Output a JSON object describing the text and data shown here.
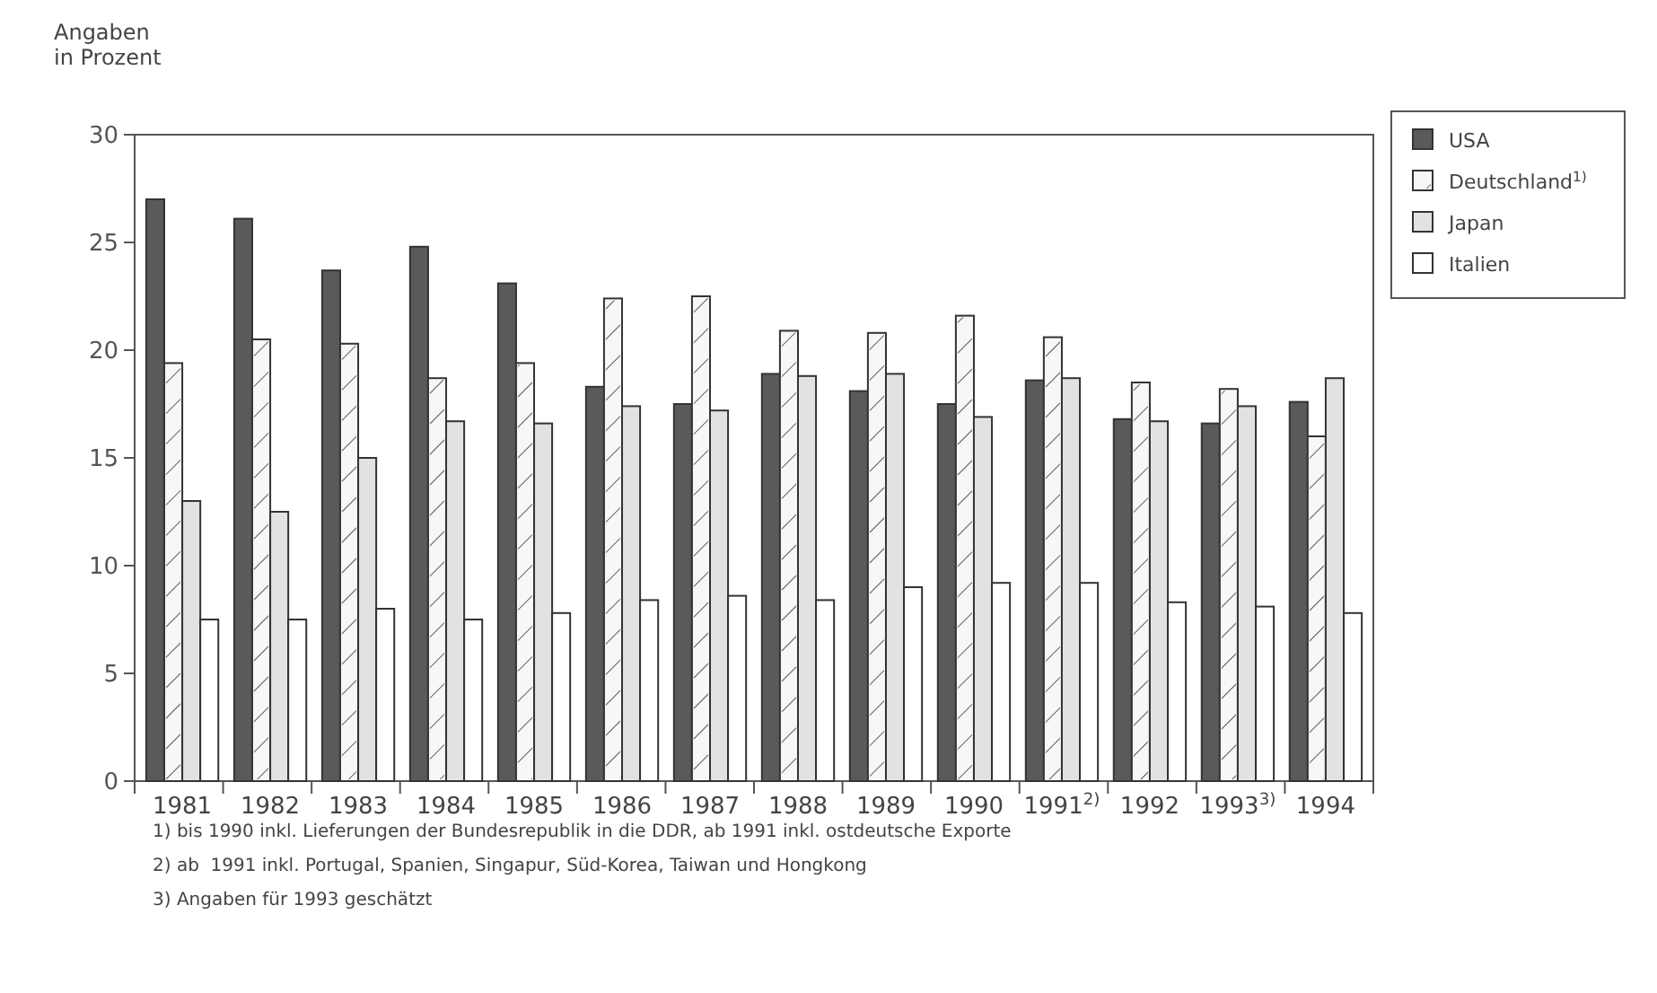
{
  "chart_data": {
    "type": "bar",
    "ylabel": "Angaben in Prozent",
    "categories": [
      "1981",
      "1982",
      "1983",
      "1984",
      "1985",
      "1986",
      "1987",
      "1988",
      "1989",
      "1990",
      "1991$^{2)}$",
      "1992",
      "1993$^{3)}$",
      "1994"
    ],
    "series": [
      {
        "name": "USA",
        "color": "#5a5a5a",
        "values": [
          27,
          26.1,
          23.7,
          24.8,
          23.1,
          18.3,
          17.5,
          18.9,
          18.1,
          17.5,
          18.6,
          16.8,
          16.6,
          17.6
        ]
      },
      {
        "name": "Deutschland$^{1)}$",
        "color": "#f7f7f7",
        "values": [
          19.4,
          20.5,
          20.3,
          18.7,
          19.4,
          22.4,
          22.5,
          20.9,
          20.8,
          21.6,
          20.6,
          18.5,
          18.2,
          16
        ]
      },
      {
        "name": "Japan",
        "color": "#e2e2e2",
        "values": [
          13,
          12.5,
          15,
          16.7,
          16.6,
          17.4,
          17.2,
          18.8,
          18.9,
          16.9,
          18.7,
          16.7,
          17.4,
          18.7
        ]
      },
      {
        "name": "Italien",
        "color": "#ffffff",
        "values": [
          7.5,
          7.5,
          8,
          7.5,
          7.8,
          8.4,
          8.6,
          8.4,
          9,
          9.2,
          9.2,
          8.3,
          8.1,
          7.8
        ]
      }
    ],
    "ylim": [
      0,
      30
    ],
    "yticks": [
      0,
      5,
      10,
      15,
      20,
      25,
      30
    ],
    "grid": false,
    "legend": "top right",
    "annotations": [
      "1) bis 1990 inkl. Lieferungen der Bundesrepublik in die DDR, ab 1991 inkl. ostdeutsche Exporte",
      "2) ab  1991 inkl. Portugal, Spanien, Singapur, Süd-Korea, Taiwan und Hongkong",
      "3) Angaben für 1993 geschätzt"
    ]
  }
}
